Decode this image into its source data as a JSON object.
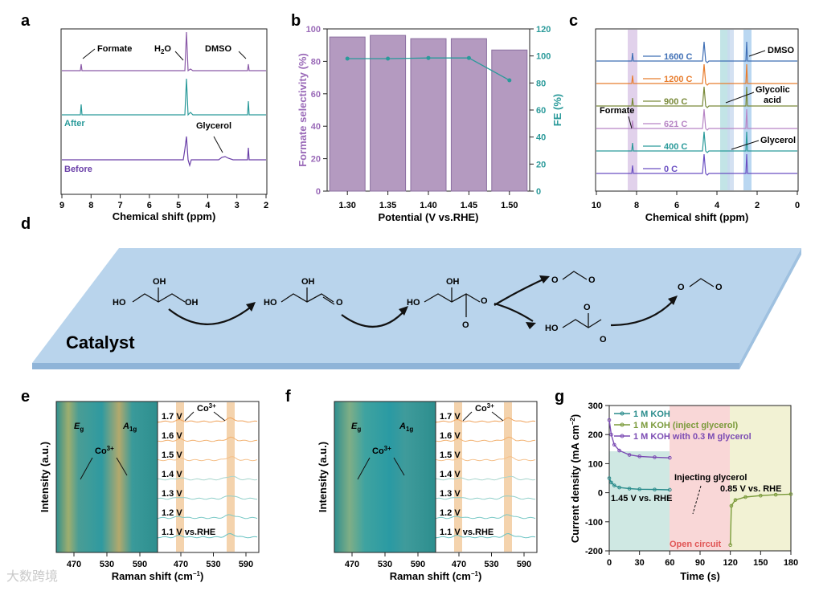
{
  "panels": {
    "a": {
      "letter": "a",
      "xlabel": "Chemical shift (ppm)",
      "xticks": [
        "9",
        "8",
        "7",
        "6",
        "5",
        "4",
        "3",
        "2"
      ],
      "annotations": {
        "formate": "Formate",
        "h2o": "H",
        "h2o_sub": "2",
        "h2o_o": "O",
        "dmso": "DMSO",
        "glycerol": "Glycerol",
        "after": "After",
        "before": "Before"
      }
    },
    "b": {
      "letter": "b",
      "chart_data": {
        "type": "bar",
        "categories": [
          "1.30",
          "1.35",
          "1.40",
          "1.45",
          "1.50"
        ],
        "series": [
          {
            "name": "Formate selectivity (%)",
            "type": "bar",
            "values": [
              95,
              96,
              94,
              94,
              87
            ]
          },
          {
            "name": "FE (%)",
            "type": "line",
            "values": [
              98,
              98,
              98.5,
              98.5,
              82
            ]
          }
        ],
        "xlabel": "Potential (V vs.RHE)",
        "ylabel": "Formate selectivity (%)",
        "y2label": "FE (%)",
        "ylim": [
          0,
          100
        ],
        "y2lim": [
          0,
          120
        ],
        "yticks": [
          "0",
          "20",
          "40",
          "60",
          "80",
          "100"
        ],
        "y2ticks": [
          "0",
          "20",
          "40",
          "60",
          "80",
          "100",
          "120"
        ]
      }
    },
    "c": {
      "letter": "c",
      "xlabel": "Chemical shift (ppm)",
      "xticks": [
        "10",
        "8",
        "6",
        "4",
        "2",
        "0"
      ],
      "traces": [
        "1600 C",
        "1200 C",
        "900 C",
        "621 C",
        "400 C",
        "0 C"
      ],
      "annotations": {
        "dmso": "DMSO",
        "glycolic": "Glycolic",
        "acid": "acid",
        "formate": "Formate",
        "glycerol": "Glycerol"
      }
    },
    "d": {
      "letter": "d",
      "catalyst": "Catalyst",
      "labels": {
        "oh": "OH",
        "ho": "HO",
        "o": "O",
        "ominus": "O"
      }
    },
    "e": {
      "letter": "e",
      "ylabel": "Intensity (a.u.)",
      "xlabel": "Raman shift (cm",
      "xlabel_sup": "−1",
      "xlabel_end": ")",
      "xticks": [
        "470",
        "530",
        "590"
      ],
      "eg": "E",
      "eg_sub": "g",
      "a1g": "A",
      "a1g_sub": "1g",
      "co3": "Co",
      "co3_sup": "3+",
      "potentials": [
        "1.7 V",
        "1.6 V",
        "1.5 V",
        "1.4 V",
        "1.3 V",
        "1.2 V",
        "1.1 V vs.RHE"
      ]
    },
    "f": {
      "letter": "f",
      "ylabel": "Intensity (a.u.)",
      "xlabel": "Raman shift (cm",
      "xlabel_sup": "−1",
      "xlabel_end": ")",
      "xticks": [
        "470",
        "530",
        "590"
      ],
      "eg": "E",
      "eg_sub": "g",
      "a1g": "A",
      "a1g_sub": "1g",
      "co3": "Co",
      "co3_sup": "3+",
      "potentials": [
        "1.7 V",
        "1.6 V",
        "1.5 V",
        "1.4 V",
        "1.3 V",
        "1.2 V",
        "1.1 V vs.RHE"
      ]
    },
    "g": {
      "letter": "g",
      "chart_data": {
        "type": "line",
        "title": "",
        "xlabel": "Time (s)",
        "ylabel": "Current density (mA cm",
        "ylabel_sup": "−2",
        "ylabel_end": ")",
        "xlim": [
          0,
          180
        ],
        "ylim": [
          -200,
          300
        ],
        "xticks": [
          "0",
          "30",
          "60",
          "90",
          "120",
          "150",
          "180"
        ],
        "yticks": [
          "-200",
          "-100",
          "0",
          "100",
          "200",
          "300"
        ],
        "series": [
          {
            "name": "1 M KOH",
            "color": "#2a8c8c",
            "x": [
              0,
              2,
              5,
              10,
              20,
              30,
              45,
              60
            ],
            "y": [
              50,
              35,
              25,
              18,
              14,
              12,
              11,
              10
            ]
          },
          {
            "name": "1 M KOH (inject glycerol)",
            "color": "#7a9a3a",
            "x": [
              120,
              121,
              125,
              135,
              150,
              165,
              180
            ],
            "y": [
              -180,
              -45,
              -25,
              -15,
              -10,
              -7,
              -5
            ]
          },
          {
            "name": "1 M KOH with 0.3 M glycerol",
            "color": "#7b4bb3",
            "x": [
              0,
              2,
              5,
              10,
              20,
              30,
              45,
              60
            ],
            "y": [
              250,
              200,
              165,
              145,
              130,
              125,
              122,
              120
            ]
          }
        ],
        "annotations": [
          "Injecting glycerol",
          "0.85 V vs. RHE",
          "1.45 V vs. RHE",
          "Open circuit"
        ]
      }
    }
  },
  "watermark": "大数跨境"
}
